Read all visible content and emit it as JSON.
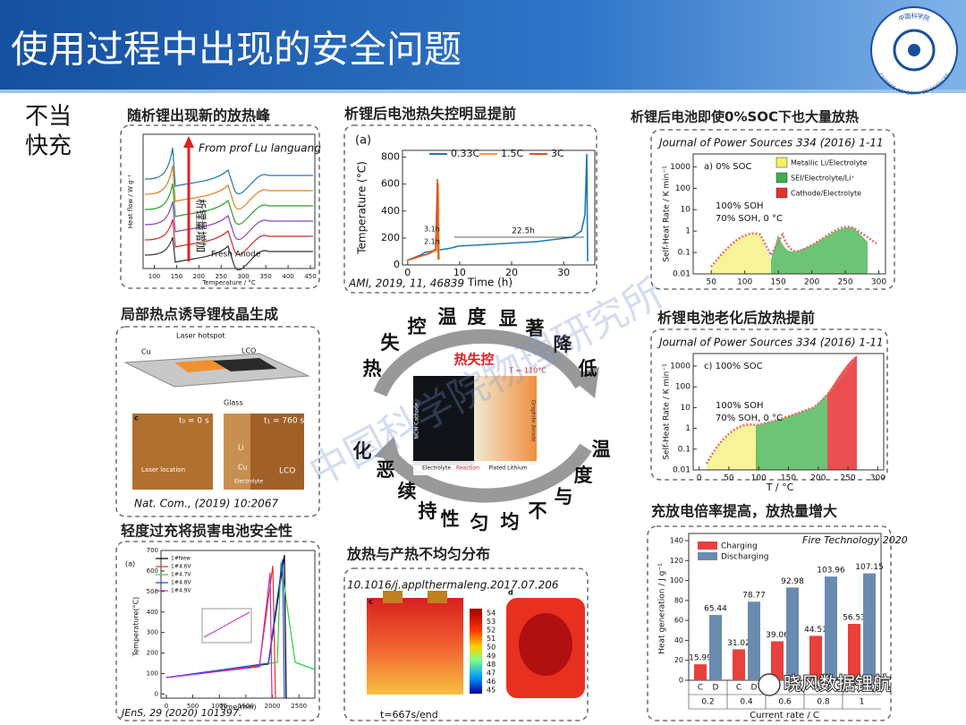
{
  "header": {
    "title": "使用过程中出现的安全问题",
    "logo_cn": "中国科学院",
    "logo_en": "CHINESE ACADEMY OF SCIENCES"
  },
  "side_label": [
    "不当",
    "快充"
  ],
  "p1": {
    "title": "随析锂出现新的放热峰",
    "source": "From prof Lu languang",
    "arrow_label": "析锂量增加",
    "curve_label": "Fresh Anode",
    "y_label": "Heat flow / W g⁻¹",
    "x_label": "Temperature / °C",
    "xlim": [
      75,
      460
    ],
    "xticks": [
      100,
      150,
      200,
      250,
      300,
      350,
      400,
      450
    ]
  },
  "p2": {
    "title": "析锂后电池热失控明显提前",
    "panel": "(a)",
    "legend": [
      {
        "name": "0.33C",
        "color": "#1f77b4"
      },
      {
        "name": "1.5C",
        "color": "#f0a030"
      },
      {
        "name": "3C",
        "color": "#e0502a"
      }
    ],
    "annotations": [
      "3.1h",
      "2.1h",
      "22.5h"
    ],
    "y_label": "Temperature (°C)",
    "x_label": "Time (h)",
    "xlim": [
      -1,
      36
    ],
    "ylim": [
      0,
      850
    ],
    "xticks": [
      0,
      10,
      20,
      30
    ],
    "yticks": [
      0,
      200,
      400,
      600,
      800
    ],
    "source": "AMI, 2019, 11, 46839"
  },
  "p3": {
    "title": "析锂后电池即使0%SOC下也大量放热",
    "source": "Journal of Power Sources 334 (2016) 1-11",
    "panel": "a) 0% SOC",
    "legend": [
      {
        "name": "Metallic Li/Electrolyte",
        "color": "#f5f060"
      },
      {
        "name": "SEI/Electrolyte/Li⁺",
        "color": "#3cb04a"
      },
      {
        "name": "Cathode/Electrolyte",
        "color": "#e8302a"
      }
    ],
    "series_labels": [
      "100% SOH",
      "70% SOH, 0 °C"
    ],
    "y_label": "Self-Heat Rate / K min⁻¹",
    "xlim": [
      23,
      310
    ],
    "ylim": [
      0.01,
      4000
    ],
    "xticks": [
      50,
      100,
      150,
      200,
      250,
      300
    ],
    "yticks": [
      1000,
      100,
      10,
      1,
      0.1,
      0.01
    ]
  },
  "p4": {
    "title": "局部热点诱导锂枝晶生成",
    "labels": [
      "Cu",
      "Laser hotspot",
      "LCO",
      "Glass"
    ],
    "micro": [
      "c",
      "t₀ = 0 s",
      "t₁ = 760 s",
      "Laser location",
      "Li",
      "Cu",
      "Electrolyte",
      "LCO"
    ],
    "source": "Nat. Com., (2019) 10:2067"
  },
  "center": {
    "title": "热失控",
    "temp": "T = 110°C",
    "cathode": "NCM Cathode",
    "anode": "Graphite Anode",
    "parts": [
      "Electrolyte",
      "Reaction",
      "Plated Lithium"
    ],
    "top_phrase": [
      "热",
      "失",
      "控",
      "温",
      "度",
      "显",
      "著",
      "降",
      "低"
    ],
    "bottom_phrase": [
      "温",
      "度",
      "与",
      "不",
      "均",
      "匀",
      "性",
      "持",
      "续",
      "恶",
      "化"
    ],
    "watermark": "中国科学院物理研究所"
  },
  "p5": {
    "title": "析锂电池老化后放热提前",
    "source": "Journal of Power Sources 334 (2016) 1-11",
    "panel": "c) 100% SOC",
    "series_labels": [
      "100% SOH",
      "70% SOH, 0 °C"
    ],
    "y_label": "Self-Heat Rate / K min⁻¹",
    "x_label": "T / °C",
    "xlim": [
      -10,
      310
    ],
    "ylim": [
      0.01,
      4000
    ],
    "xticks": [
      0,
      50,
      100,
      150,
      200,
      250,
      300
    ],
    "yticks": [
      1000,
      100,
      10,
      1,
      0.1,
      0.01
    ]
  },
  "p6": {
    "title": "轻度过充将损害电池安全性",
    "panel": "(a)",
    "legend": [
      {
        "name": "1#New",
        "color": "#000000"
      },
      {
        "name": "1#4.6V",
        "color": "#e8302a"
      },
      {
        "name": "1#4.7V",
        "color": "#2ecc40"
      },
      {
        "name": "1#4.8V",
        "color": "#2040e0"
      },
      {
        "name": "1#4.9V",
        "color": "#c030c0"
      }
    ],
    "y_label": "Temperature(°C)",
    "x_label": "Time(min)",
    "xlim": [
      -100,
      2800
    ],
    "ylim": [
      -20,
      700
    ],
    "xticks": [
      0,
      500,
      1000,
      1500,
      2000,
      2500
    ],
    "yticks": [
      0,
      100,
      200,
      300,
      400,
      500,
      600,
      700
    ],
    "source": "JEnS, 29 (2020) 101397."
  },
  "p7": {
    "title": "放热与产热不均匀分布",
    "source": "10.1016/j.applthermaleng.2017.07.206",
    "panels": [
      "c",
      "d"
    ],
    "colorbar": [
      54,
      53,
      52,
      51,
      50,
      49,
      48,
      47,
      46,
      45
    ],
    "time": "t=667s/end"
  },
  "p8": {
    "title": "充放电倍率提高，放热量增大",
    "source": "Fire Technology 2020",
    "chart": {
      "type": "bar",
      "categories": [
        "0.2",
        "0.4",
        "0.6",
        "0.8",
        "1"
      ],
      "sub_labels": [
        "C",
        "D"
      ],
      "series": [
        {
          "name": "Charging",
          "color": "#e8403a",
          "values": [
            15.99,
            31.02,
            39.06,
            44.51,
            56.53
          ]
        },
        {
          "name": "Discharging",
          "color": "#6a8bb0",
          "values": [
            65.44,
            78.77,
            92.98,
            103.96,
            107.15
          ]
        }
      ],
      "ylim": [
        0,
        140
      ],
      "yticks": [
        0,
        20,
        40,
        60,
        80,
        100,
        120,
        140
      ],
      "y_label": "Heat generation / J g⁻¹",
      "x_label": "Current rate / C"
    }
  },
  "footer_watermark": "晓风数据锂航"
}
